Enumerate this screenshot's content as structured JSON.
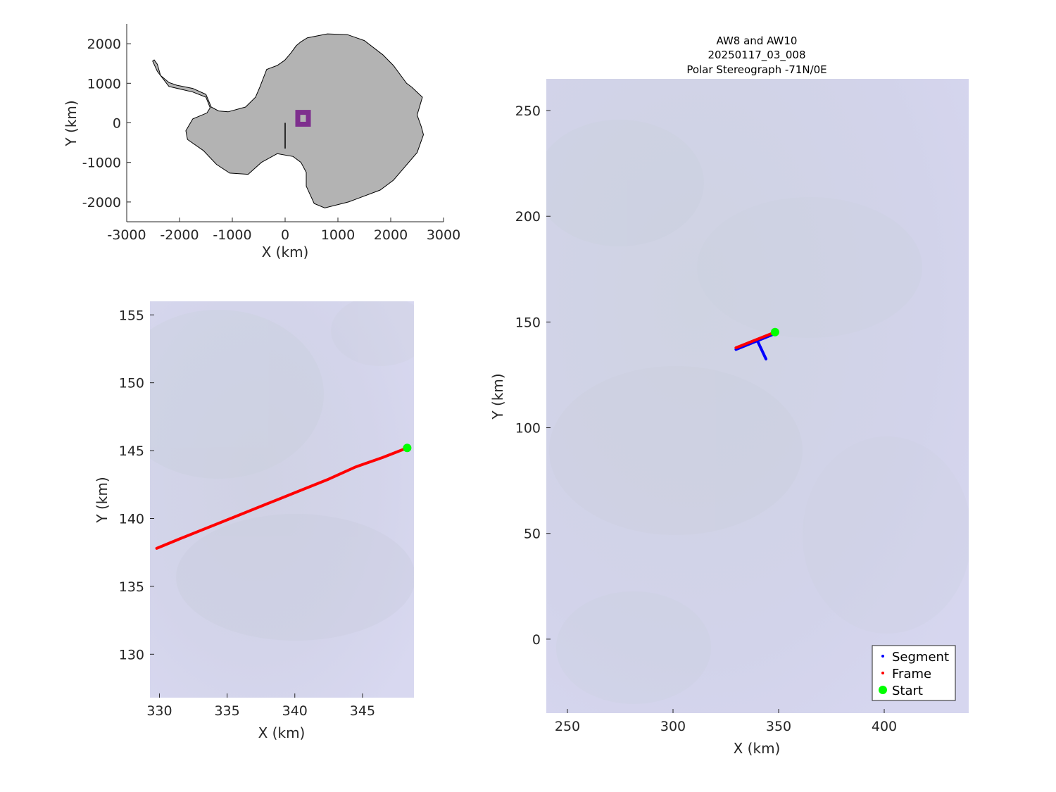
{
  "colors": {
    "land": "#b3b3b3",
    "background_image": "#d4d4ea",
    "segment": "#0000ff",
    "frame": "#ff0000",
    "start": "#00ff00",
    "box": "#7e2f8e"
  },
  "chart_data": [
    {
      "id": "overview",
      "type": "map",
      "xlabel": "X (km)",
      "ylabel": "Y (km)",
      "xlim": [
        -3000,
        3000
      ],
      "ylim": [
        -2500,
        2500
      ],
      "xticks": [
        -3000,
        -2000,
        -1000,
        0,
        1000,
        2000,
        3000
      ],
      "yticks": [
        -2000,
        -1000,
        0,
        1000,
        2000
      ],
      "grid": false,
      "region_box": {
        "x": [
          240,
          440
        ],
        "y": [
          -35,
          265
        ]
      },
      "reference_line": {
        "x": [
          0,
          0
        ],
        "y": [
          0,
          -650
        ]
      },
      "coastline": [
        [
          -2480,
          1590
        ],
        [
          -2420,
          1480
        ],
        [
          -2360,
          1200
        ],
        [
          -2200,
          1020
        ],
        [
          -2050,
          950
        ],
        [
          -1750,
          870
        ],
        [
          -1500,
          720
        ],
        [
          -1400,
          400
        ],
        [
          -1260,
          300
        ],
        [
          -1080,
          280
        ],
        [
          -750,
          400
        ],
        [
          -560,
          650
        ],
        [
          -480,
          900
        ],
        [
          -350,
          1350
        ],
        [
          -150,
          1450
        ],
        [
          -10,
          1580
        ],
        [
          100,
          1750
        ],
        [
          210,
          1950
        ],
        [
          300,
          2050
        ],
        [
          420,
          2150
        ],
        [
          800,
          2250
        ],
        [
          1180,
          2230
        ],
        [
          1500,
          2080
        ],
        [
          1850,
          1720
        ],
        [
          2050,
          1450
        ],
        [
          2300,
          1000
        ],
        [
          2400,
          900
        ],
        [
          2600,
          650
        ],
        [
          2500,
          200
        ],
        [
          2580,
          -100
        ],
        [
          2620,
          -300
        ],
        [
          2500,
          -750
        ],
        [
          2050,
          -1450
        ],
        [
          1800,
          -1700
        ],
        [
          1200,
          -2000
        ],
        [
          750,
          -2150
        ],
        [
          550,
          -2040
        ],
        [
          400,
          -1600
        ],
        [
          400,
          -1250
        ],
        [
          300,
          -1000
        ],
        [
          150,
          -850
        ],
        [
          -150,
          -780
        ],
        [
          -450,
          -1000
        ],
        [
          -700,
          -1300
        ],
        [
          -1050,
          -1270
        ],
        [
          -1300,
          -1050
        ],
        [
          -1550,
          -700
        ],
        [
          -1850,
          -420
        ],
        [
          -1880,
          -200
        ],
        [
          -1750,
          100
        ],
        [
          -1480,
          250
        ],
        [
          -1420,
          380
        ],
        [
          -1500,
          650
        ],
        [
          -1750,
          780
        ],
        [
          -2200,
          920
        ],
        [
          -2420,
          1300
        ],
        [
          -2510,
          1560
        ]
      ]
    },
    {
      "id": "zoom",
      "type": "map",
      "xlabel": "X (km)",
      "ylabel": "Y (km)",
      "xlim": [
        329.3,
        348.8
      ],
      "ylim": [
        126.8,
        156.0
      ],
      "xticks": [
        330,
        335,
        340,
        345
      ],
      "yticks": [
        130,
        135,
        140,
        145,
        150,
        155
      ],
      "grid": false,
      "frame_track": [
        [
          329.8,
          137.8
        ],
        [
          331.5,
          138.5
        ],
        [
          333.5,
          139.3
        ],
        [
          335.5,
          140.1
        ],
        [
          337.5,
          140.9
        ],
        [
          339.0,
          141.5
        ],
        [
          340.5,
          142.1
        ],
        [
          342.5,
          142.9
        ],
        [
          344.5,
          143.8
        ],
        [
          346.5,
          144.5
        ],
        [
          348.3,
          145.2
        ]
      ],
      "start_point": [
        348.3,
        145.2
      ]
    },
    {
      "id": "main",
      "type": "map",
      "title": [
        "AW8 and AW10",
        "20250117_03_008",
        "Polar Stereograph -71N/0E"
      ],
      "xlabel": "X (km)",
      "ylabel": "Y (km)",
      "xlim": [
        240,
        440
      ],
      "ylim": [
        -35,
        265
      ],
      "xticks": [
        250,
        300,
        350,
        400
      ],
      "yticks": [
        0,
        50,
        100,
        150,
        200,
        250
      ],
      "grid": false,
      "legend_position": "bottom-right",
      "legend": [
        "Segment",
        "Frame",
        "Start"
      ],
      "segment_tracks": [
        [
          [
            329.8,
            137.0
          ],
          [
            348.3,
            144.5
          ]
        ],
        [
          [
            340.0,
            141.0
          ],
          [
            344.0,
            132.5
          ]
        ]
      ],
      "frame_track": [
        [
          329.8,
          137.8
        ],
        [
          348.3,
          145.2
        ]
      ],
      "start_point": [
        348.3,
        145.2
      ]
    }
  ]
}
